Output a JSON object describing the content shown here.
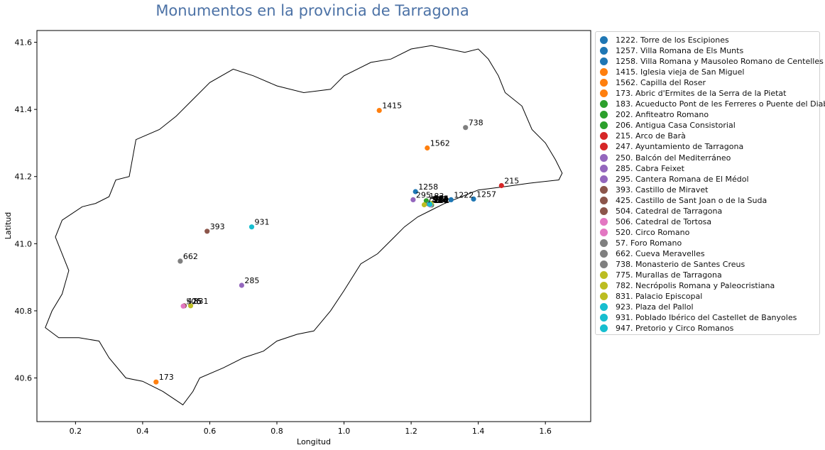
{
  "chart_data": {
    "type": "scatter",
    "title": "Monumentos en la provincia de Tarragona",
    "xlabel": "Longitud",
    "ylabel": "Latitud",
    "xlim": [
      0.085,
      1.735
    ],
    "ylim": [
      40.47,
      41.635
    ],
    "xticks": [
      "0.2",
      "0.4",
      "0.6",
      "0.8",
      "1.0",
      "1.2",
      "1.4",
      "1.6"
    ],
    "yticks": [
      "40.6",
      "40.8",
      "41.0",
      "41.2",
      "41.4",
      "41.6"
    ],
    "grid": false,
    "legend_position": "right-outside",
    "province_outline": [
      [
        0.38,
        41.31
      ],
      [
        0.36,
        41.2
      ],
      [
        0.32,
        41.19
      ],
      [
        0.3,
        41.14
      ],
      [
        0.26,
        41.12
      ],
      [
        0.22,
        41.11
      ],
      [
        0.16,
        41.07
      ],
      [
        0.14,
        41.02
      ],
      [
        0.18,
        40.92
      ],
      [
        0.16,
        40.85
      ],
      [
        0.13,
        40.8
      ],
      [
        0.11,
        40.75
      ],
      [
        0.15,
        40.72
      ],
      [
        0.21,
        40.72
      ],
      [
        0.27,
        40.71
      ],
      [
        0.3,
        40.66
      ],
      [
        0.35,
        40.6
      ],
      [
        0.4,
        40.59
      ],
      [
        0.46,
        40.56
      ],
      [
        0.52,
        40.52
      ],
      [
        0.55,
        40.56
      ],
      [
        0.57,
        40.6
      ],
      [
        0.64,
        40.63
      ],
      [
        0.7,
        40.66
      ],
      [
        0.76,
        40.68
      ],
      [
        0.8,
        40.71
      ],
      [
        0.86,
        40.73
      ],
      [
        0.91,
        40.74
      ],
      [
        0.96,
        40.8
      ],
      [
        1.0,
        40.86
      ],
      [
        1.05,
        40.94
      ],
      [
        1.1,
        40.97
      ],
      [
        1.15,
        41.02
      ],
      [
        1.18,
        41.05
      ],
      [
        1.22,
        41.08
      ],
      [
        1.26,
        41.1
      ],
      [
        1.3,
        41.12
      ],
      [
        1.35,
        41.14
      ],
      [
        1.4,
        41.16
      ],
      [
        1.48,
        41.17
      ],
      [
        1.55,
        41.18
      ],
      [
        1.64,
        41.19
      ],
      [
        1.65,
        41.21
      ],
      [
        1.63,
        41.25
      ],
      [
        1.6,
        41.3
      ],
      [
        1.56,
        41.34
      ],
      [
        1.53,
        41.41
      ],
      [
        1.48,
        41.45
      ],
      [
        1.46,
        41.5
      ],
      [
        1.43,
        41.55
      ],
      [
        1.4,
        41.58
      ],
      [
        1.36,
        41.57
      ],
      [
        1.31,
        41.58
      ],
      [
        1.26,
        41.59
      ],
      [
        1.2,
        41.58
      ],
      [
        1.14,
        41.55
      ],
      [
        1.08,
        41.54
      ],
      [
        1.0,
        41.5
      ],
      [
        0.96,
        41.46
      ],
      [
        0.88,
        41.45
      ],
      [
        0.8,
        41.47
      ],
      [
        0.73,
        41.5
      ],
      [
        0.67,
        41.52
      ],
      [
        0.6,
        41.48
      ],
      [
        0.55,
        41.43
      ],
      [
        0.5,
        41.38
      ],
      [
        0.45,
        41.34
      ],
      [
        0.38,
        41.31
      ]
    ],
    "series": [
      {
        "name": "1222. Torre de los Escipiones",
        "label": "1222",
        "color": "#1f77b4",
        "x": 1.319,
        "y": 41.131
      },
      {
        "name": "1257. Villa Romana de Els Munts",
        "label": "1257",
        "color": "#1f77b4",
        "x": 1.386,
        "y": 41.133
      },
      {
        "name": "1258. Villa Romana y Mausoleo Romano de Centelles",
        "label": "1258",
        "color": "#1f77b4",
        "x": 1.213,
        "y": 41.155
      },
      {
        "name": "1415. Iglesia vieja de San Miguel",
        "label": "1415",
        "color": "#ff7f0e",
        "x": 1.105,
        "y": 41.397
      },
      {
        "name": "1562. Capilla del Roser",
        "label": "1562",
        "color": "#ff7f0e",
        "x": 1.248,
        "y": 41.285
      },
      {
        "name": "173. Abric d'Ermites de la Serra de la Pietat",
        "label": "173",
        "color": "#ff7f0e",
        "x": 0.44,
        "y": 40.588
      },
      {
        "name": "183. Acueducto Pont de les Ferreres o Puente del Diablo",
        "label": "183",
        "color": "#2ca02c",
        "x": 1.245,
        "y": 41.128
      },
      {
        "name": "202. Anfiteatro Romano",
        "label": "202",
        "color": "#2ca02c",
        "x": 1.261,
        "y": 41.115
      },
      {
        "name": "206. Antigua Casa Consistorial",
        "label": "206",
        "color": "#2ca02c",
        "x": 1.258,
        "y": 41.117
      },
      {
        "name": "215. Arco de Barà",
        "label": "215",
        "color": "#d62728",
        "x": 1.469,
        "y": 41.173
      },
      {
        "name": "247. Ayuntamiento de Tarragona",
        "label": "247",
        "color": "#d62728",
        "x": 1.258,
        "y": 41.118
      },
      {
        "name": "250. Balcón del Mediterráneo",
        "label": "250",
        "color": "#9467bd",
        "x": 1.259,
        "y": 41.116
      },
      {
        "name": "285. Cabra Feixet",
        "label": "285",
        "color": "#9467bd",
        "x": 0.695,
        "y": 40.876
      },
      {
        "name": "295. Cantera Romana de El Médol",
        "label": "295",
        "color": "#9467bd",
        "x": 1.206,
        "y": 41.131
      },
      {
        "name": "393. Castillo de Miravet",
        "label": "393",
        "color": "#8c564b",
        "x": 0.592,
        "y": 41.037
      },
      {
        "name": "425. Castillo de Sant Joan o de la Suda",
        "label": "425",
        "color": "#8c564b",
        "x": 0.524,
        "y": 40.815
      },
      {
        "name": "504. Catedral de Tarragona",
        "label": "504",
        "color": "#8c564b",
        "x": 1.258,
        "y": 41.119
      },
      {
        "name": "506. Catedral de Tortosa",
        "label": "506",
        "color": "#e377c2",
        "x": 0.521,
        "y": 40.814
      },
      {
        "name": "520. Circo Romano",
        "label": "520",
        "color": "#e377c2",
        "x": 1.257,
        "y": 41.115
      },
      {
        "name": "57. Foro Romano",
        "label": "57",
        "color": "#7f7f7f",
        "x": 1.252,
        "y": 41.118
      },
      {
        "name": "662. Cueva Meravelles",
        "label": "662",
        "color": "#7f7f7f",
        "x": 0.512,
        "y": 40.948
      },
      {
        "name": "738. Monasterio de Santes Creus",
        "label": "738",
        "color": "#7f7f7f",
        "x": 1.362,
        "y": 41.346
      },
      {
        "name": "775. Murallas de Tarragona",
        "label": "775",
        "color": "#bcbd22",
        "x": 1.259,
        "y": 41.12
      },
      {
        "name": "782. Necrópolis Romana y Paleocristiana",
        "label": "782",
        "color": "#bcbd22",
        "x": 1.239,
        "y": 41.116
      },
      {
        "name": "831. Palacio Episcopal",
        "label": "831",
        "color": "#bcbd22",
        "x": 0.543,
        "y": 40.815
      },
      {
        "name": "923. Plaza del Pallol",
        "label": "923",
        "color": "#17becf",
        "x": 1.256,
        "y": 41.117
      },
      {
        "name": "931. Poblado Ibérico del Castellet de Banyoles",
        "label": "931",
        "color": "#17becf",
        "x": 0.725,
        "y": 41.05
      },
      {
        "name": "947. Pretorio y Circo Romanos",
        "label": "947",
        "color": "#17becf",
        "x": 1.255,
        "y": 41.118
      }
    ]
  }
}
